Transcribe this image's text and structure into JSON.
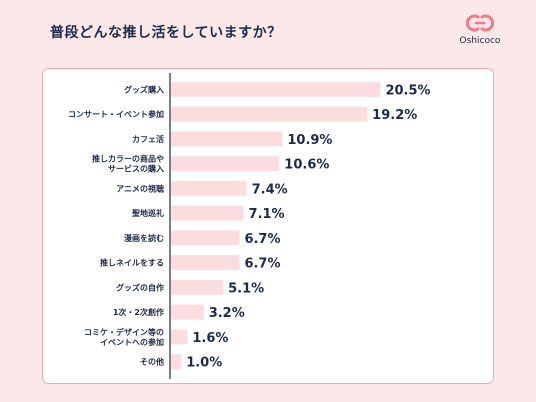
{
  "page": {
    "title": "普段どんな推し活をしていますか？",
    "brand": "Oshicoco",
    "accent_color": "#fbdcdf",
    "background_color": "#fbe9ea",
    "card_border_color": "#f2aab0",
    "text_color": "#1f2a4a",
    "logo_color": "#f07a85"
  },
  "chart_data": {
    "type": "bar",
    "orientation": "horizontal",
    "categories": [
      [
        "グッズ購入"
      ],
      [
        "コンサート・イベント参加"
      ],
      [
        "カフェ活"
      ],
      [
        "推しカラーの商品や",
        "サービスの購入"
      ],
      [
        "アニメの視聴"
      ],
      [
        "聖地巡礼"
      ],
      [
        "漫画を読む"
      ],
      [
        "推しネイルをする"
      ],
      [
        "グッズの自作"
      ],
      [
        "1次・2次創作"
      ],
      [
        "コミケ・デザイン等の",
        "イベントへの参加"
      ],
      [
        "その他"
      ]
    ],
    "values": [
      20.5,
      19.2,
      10.9,
      10.6,
      7.4,
      7.1,
      6.7,
      6.7,
      5.1,
      3.2,
      1.6,
      1.0
    ],
    "value_labels": [
      "20.5%",
      "19.2%",
      "10.9%",
      "10.6%",
      "7.4%",
      "7.1%",
      "6.7%",
      "6.7%",
      "5.1%",
      "3.2%",
      "1.6%",
      "1.0%"
    ],
    "unit": "%",
    "xlim": [
      0,
      23
    ],
    "bar_color": "#fbdcdf",
    "axis_color": "#1f2a4a",
    "grid": false,
    "legend": "none"
  }
}
